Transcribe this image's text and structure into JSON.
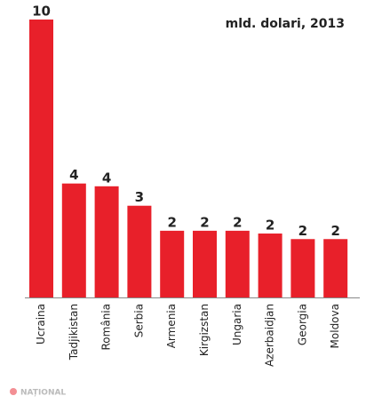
{
  "chart_data": {
    "type": "bar",
    "subtitle": "mld. dolari, 2013",
    "categories": [
      "Ucraina",
      "Tadjikistan",
      "România",
      "Serbia",
      "Armenia",
      "Kirgizstan",
      "Ungaria",
      "Azerbaidjan",
      "Georgia",
      "Moldova"
    ],
    "values": [
      10,
      4.1,
      4.0,
      3.3,
      2.4,
      2.4,
      2.4,
      2.3,
      2.1,
      2.1
    ],
    "value_labels": [
      "10",
      "4",
      "4",
      "3",
      "2",
      "2",
      "2",
      "2",
      "2",
      "2"
    ],
    "color": "#e8202a"
  },
  "watermark": "NAȚIONAL"
}
